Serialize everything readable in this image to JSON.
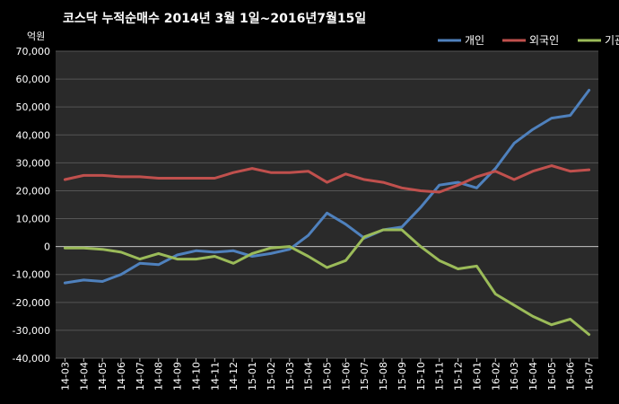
{
  "chart_data": {
    "type": "line",
    "title": "코스닥  누적순매수 2014년 3월 1일~2016년7월15일",
    "ylabel": "억원",
    "xlabel": "",
    "ylim": [
      -40000,
      70000
    ],
    "yticks": [
      -40000,
      -30000,
      -20000,
      -10000,
      0,
      10000,
      20000,
      30000,
      40000,
      50000,
      60000,
      70000
    ],
    "ytick_labels": [
      "-40,000",
      "-30,000",
      "-20,000",
      "-10,000",
      "0",
      "10,000",
      "20,000",
      "30,000",
      "40,000",
      "50,000",
      "60,000",
      "70,000"
    ],
    "categories": [
      "14-03",
      "14-04",
      "14-05",
      "14-06",
      "14-07",
      "14-08",
      "14-09",
      "14-10",
      "14-11",
      "14-12",
      "15-01",
      "15-02",
      "15-03",
      "15-04",
      "15-05",
      "15-06",
      "15-07",
      "15-08",
      "15-09",
      "15-10",
      "15-11",
      "15-12",
      "16-01",
      "16-02",
      "16-03",
      "16-04",
      "16-05",
      "16-06",
      "16-07"
    ],
    "grid": true,
    "legend_position": "top-right",
    "background": "#2a2a2a",
    "series": [
      {
        "name": "개인",
        "color": "#4f81bd",
        "values": [
          -13000,
          -12000,
          -12500,
          -10000,
          -6000,
          -6500,
          -3000,
          -1500,
          -2000,
          -1500,
          -3500,
          -2500,
          -1000,
          4000,
          12000,
          8000,
          3000,
          6000,
          7000,
          14000,
          22000,
          23000,
          21000,
          28000,
          37000,
          42000,
          46000,
          47000,
          56000
        ]
      },
      {
        "name": "외국인",
        "color": "#c0504d",
        "values": [
          24000,
          25500,
          25500,
          25000,
          25000,
          24500,
          24500,
          24500,
          24500,
          26500,
          28000,
          26500,
          26500,
          27000,
          23000,
          26000,
          24000,
          23000,
          21000,
          20000,
          19500,
          22000,
          25000,
          27000,
          24000,
          27000,
          29000,
          27000,
          27500
        ]
      },
      {
        "name": "기관",
        "color": "#9bbb59",
        "values": [
          -500,
          -500,
          -1000,
          -2000,
          -4500,
          -2500,
          -4500,
          -4500,
          -3500,
          -6000,
          -2500,
          -500,
          0,
          -3500,
          -7500,
          -5000,
          3500,
          6000,
          6000,
          0,
          -5000,
          -8000,
          -7000,
          -17000,
          -21000,
          -25000,
          -28000,
          -26000,
          -31500
        ]
      }
    ]
  }
}
